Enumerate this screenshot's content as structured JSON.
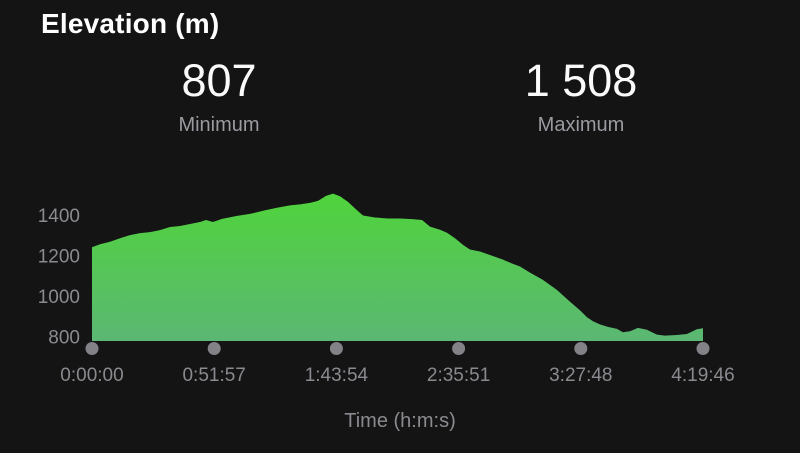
{
  "page": {
    "background": "#141415"
  },
  "header": {
    "title": "Elevation (m)"
  },
  "stats": {
    "minimum": {
      "value": "807",
      "label": "Minimum"
    },
    "maximum": {
      "value": "1 508",
      "label": "Maximum"
    }
  },
  "chart_data": {
    "type": "area",
    "title": "Elevation (m)",
    "xlabel": "Time (h:m:s)",
    "ylabel": "",
    "grid": false,
    "legend": "none",
    "xlim_seconds": [
      0,
      15586
    ],
    "ylim": [
      780,
      1575
    ],
    "y_ticks": [
      800,
      1000,
      1200,
      1400
    ],
    "x_ticks": {
      "seconds": [
        0,
        3117,
        6234,
        9351,
        12468,
        15586
      ],
      "labels": [
        "0:00:00",
        "0:51:57",
        "1:43:54",
        "2:35:51",
        "3:27:48",
        "4:19:46"
      ]
    },
    "min_elevation_m": 807,
    "max_elevation_m": 1508,
    "series": [
      {
        "name": "elevation_m",
        "x_seconds": [
          0,
          204,
          459,
          714,
          969,
          1224,
          1479,
          1734,
          1989,
          2245,
          2500,
          2755,
          2908,
          3086,
          3316,
          3698,
          4030,
          4362,
          4719,
          5051,
          5306,
          5561,
          5765,
          5969,
          6147,
          6326,
          6530,
          6734,
          6912,
          7218,
          7550,
          7856,
          8162,
          8417,
          8621,
          8876,
          9055,
          9259,
          9463,
          9641,
          9897,
          10152,
          10483,
          10713,
          10917,
          11172,
          11503,
          11861,
          12192,
          12447,
          12626,
          12779,
          12957,
          13161,
          13391,
          13544,
          13723,
          13927,
          14156,
          14411,
          14615,
          14921,
          15176,
          15431,
          15586
        ],
        "y_m": [
          1243,
          1258,
          1270,
          1288,
          1303,
          1313,
          1318,
          1328,
          1343,
          1348,
          1358,
          1368,
          1378,
          1368,
          1383,
          1398,
          1408,
          1423,
          1438,
          1450,
          1455,
          1462,
          1472,
          1497,
          1508,
          1495,
          1467,
          1430,
          1400,
          1390,
          1385,
          1385,
          1382,
          1378,
          1345,
          1330,
          1315,
          1288,
          1255,
          1232,
          1222,
          1205,
          1182,
          1163,
          1148,
          1118,
          1082,
          1032,
          975,
          932,
          898,
          878,
          862,
          850,
          840,
          823,
          828,
          845,
          836,
          812,
          807,
          810,
          815,
          838,
          843
        ]
      }
    ],
    "colors": {
      "area_top": "#50d43b",
      "area_bottom": "#5bb773",
      "axis_text": "#8a8a8f",
      "tick_dot": "#828287",
      "stat_label": "#9a9aa0",
      "text": "#ffffff"
    }
  }
}
